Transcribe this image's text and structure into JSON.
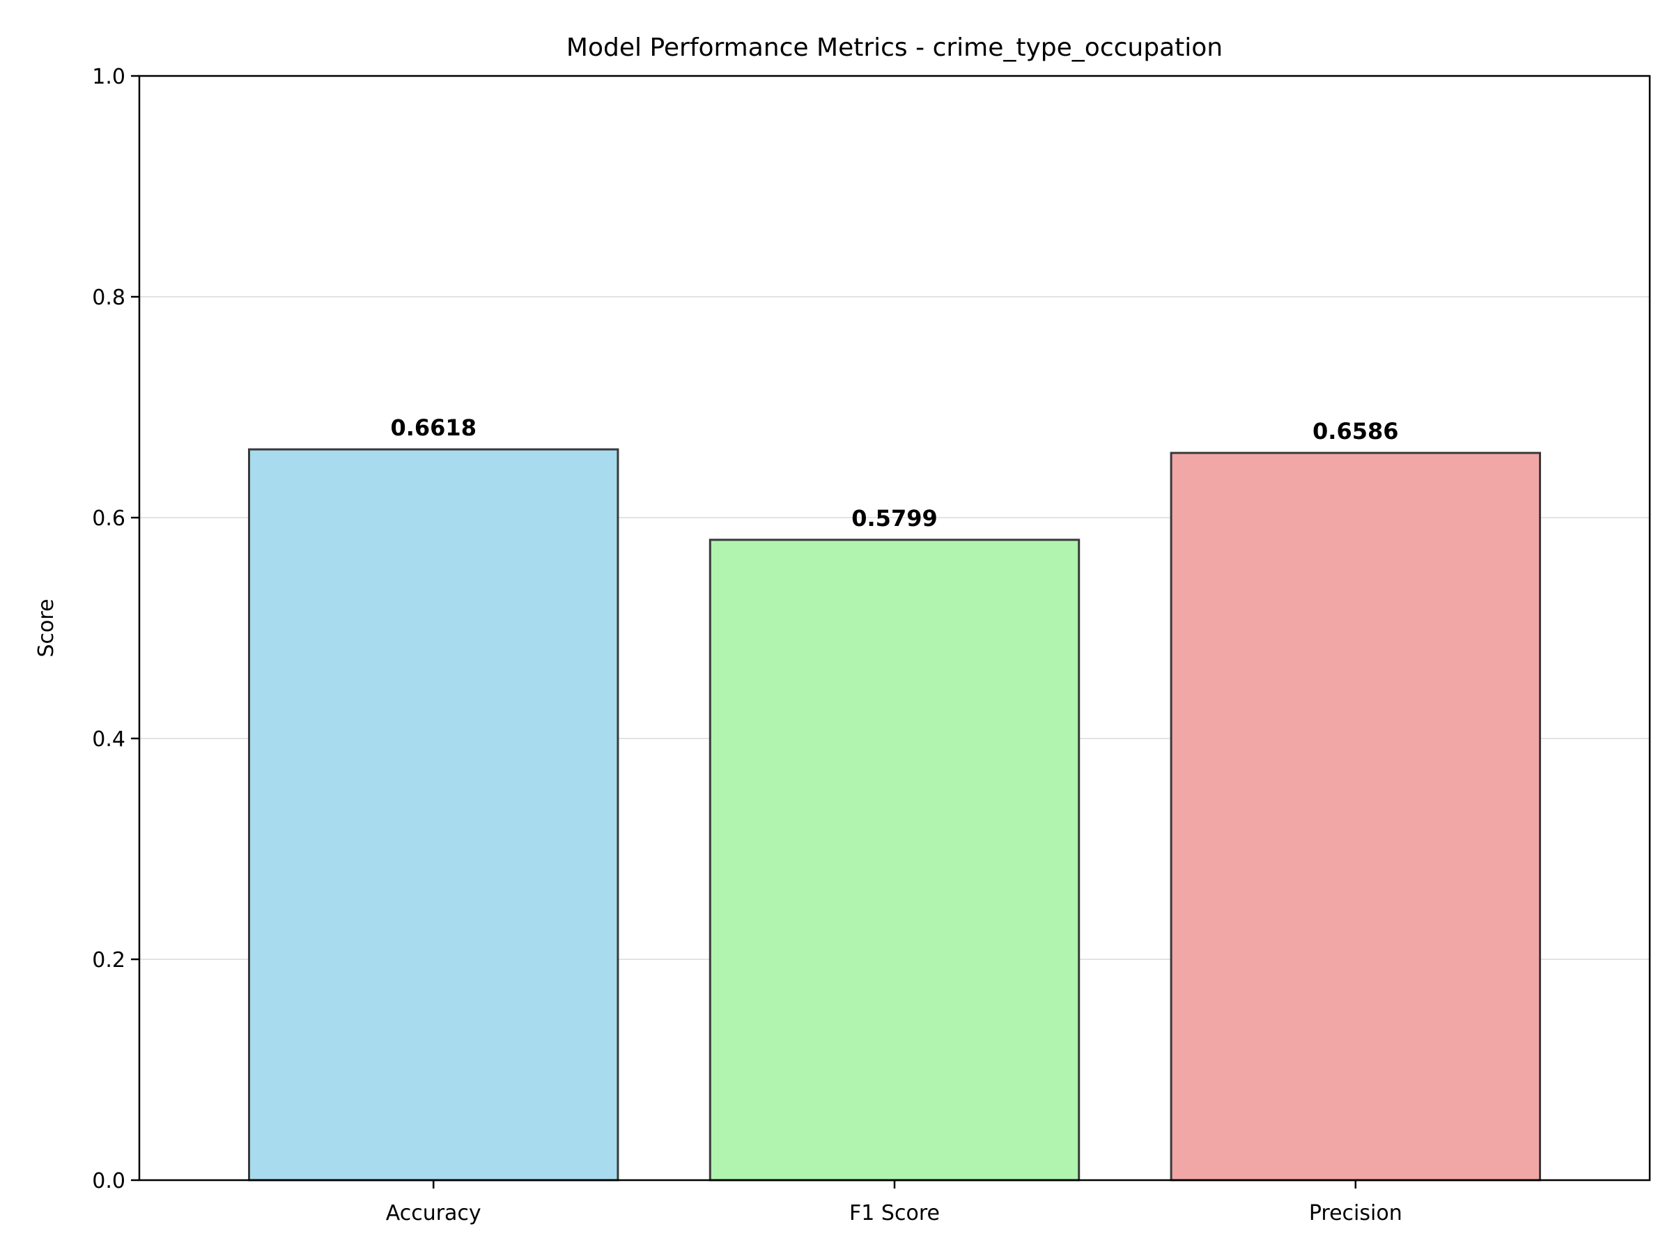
{
  "chart_data": {
    "type": "bar",
    "title": "Model Performance Metrics - crime_type_occupation",
    "xlabel": "",
    "ylabel": "Score",
    "categories": [
      "Accuracy",
      "F1 Score",
      "Precision"
    ],
    "values": [
      0.6618,
      0.5799,
      0.6586
    ],
    "value_labels": [
      "0.6618",
      "0.5799",
      "0.6586"
    ],
    "colors": [
      "#a8dbed",
      "#b0f4b0",
      "#f2a7a7"
    ],
    "bar_edge_color": "#3a3a3a",
    "ylim": [
      0,
      1.0
    ],
    "yticks": [
      0.0,
      0.2,
      0.4,
      0.6,
      0.8,
      1.0
    ],
    "ytick_labels": [
      "0.0",
      "0.2",
      "0.4",
      "0.6",
      "0.8",
      "1.0"
    ],
    "grid": "y",
    "legend": "none"
  }
}
